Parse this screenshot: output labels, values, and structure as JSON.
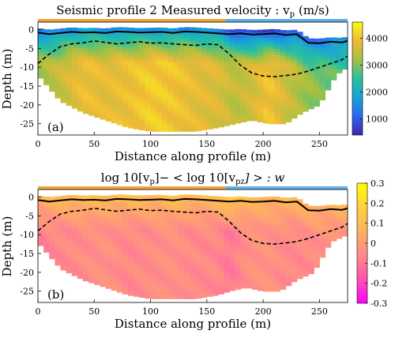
{
  "chart_data": [
    {
      "type": "heatmap",
      "panel_label": "(a)",
      "title": "Seismic profile 2 Measured velocity : v",
      "title_sub": "p",
      "title_unit": "(m/s)",
      "xlabel": "Distance along profile (m)",
      "ylabel": "Depth (m)",
      "xlim": [
        0,
        275
      ],
      "ylim": [
        -28,
        2
      ],
      "xticks": [
        0,
        50,
        100,
        150,
        200,
        250
      ],
      "yticks": [
        0,
        -5,
        -10,
        -15,
        -20,
        -25
      ],
      "colorbar": {
        "range": [
          400,
          4600
        ],
        "ticks": [
          1000,
          2000,
          3000,
          4000
        ],
        "colors": [
          "#3e26a8",
          "#2b66f3",
          "#1aa2d8",
          "#28c09e",
          "#a8c041",
          "#f0ba37",
          "#f9fb15"
        ]
      },
      "top_bar": [
        {
          "from": 0,
          "to": 167,
          "color": "#f0a23a"
        },
        {
          "from": 167,
          "to": 275,
          "color": "#5fb0ea"
        }
      ],
      "solid_line": {
        "x": [
          0,
          10,
          20,
          30,
          40,
          50,
          60,
          70,
          80,
          90,
          100,
          110,
          120,
          130,
          140,
          150,
          160,
          170,
          180,
          190,
          200,
          210,
          220,
          230,
          240,
          250,
          260,
          270,
          275
        ],
        "y": [
          -0.8,
          -1.2,
          -0.9,
          -0.6,
          -0.8,
          -0.7,
          -0.9,
          -0.5,
          -0.6,
          -0.8,
          -0.7,
          -0.6,
          -0.9,
          -0.5,
          -0.6,
          -0.8,
          -1.0,
          -1.2,
          -1.0,
          -1.3,
          -1.2,
          -1.0,
          -1.4,
          -1.2,
          -3.5,
          -3.6,
          -3.2,
          -3.4,
          -3.0
        ]
      },
      "dashed_line": {
        "x": [
          0,
          10,
          20,
          30,
          40,
          50,
          60,
          70,
          80,
          90,
          100,
          110,
          120,
          130,
          140,
          150,
          160,
          170,
          180,
          190,
          200,
          210,
          220,
          230,
          240,
          250,
          260,
          270,
          275
        ],
        "y": [
          -9.0,
          -6.5,
          -4.5,
          -3.8,
          -3.5,
          -3.0,
          -3.4,
          -3.8,
          -3.5,
          -3.2,
          -3.6,
          -3.5,
          -3.8,
          -4.0,
          -4.2,
          -3.8,
          -4.0,
          -6.5,
          -9.5,
          -11.5,
          -12.3,
          -12.5,
          -12.2,
          -11.8,
          -11.0,
          -10.0,
          -9.0,
          -8.0,
          -7.0
        ]
      },
      "velocity_field": {
        "x": [
          0,
          20,
          40,
          60,
          80,
          100,
          120,
          140,
          160,
          175,
          190,
          205,
          220,
          235,
          250,
          265,
          275
        ],
        "shallow": [
          1300,
          1500,
          1700,
          1600,
          1500,
          1600,
          1500,
          1600,
          1500,
          800,
          700,
          700,
          800,
          1100,
          1300,
          1500,
          1600
        ],
        "deep": [
          3200,
          3500,
          3900,
          3800,
          3900,
          4100,
          4000,
          3800,
          3700,
          3400,
          3600,
          4000,
          3600,
          3200,
          3000,
          2800,
          2700
        ],
        "bottom": [
          -12,
          -19,
          -22,
          -24,
          -26,
          -27,
          -27,
          -27,
          -26,
          -25,
          -24,
          -25,
          -25,
          -22,
          -20,
          -12,
          -10
        ]
      }
    },
    {
      "type": "heatmap",
      "panel_label": "(b)",
      "title": "log 10[v",
      "title_sub1": "p",
      "title_mid": "]− < log 10[v",
      "title_sub2": "pz",
      "title_end": "] > : w",
      "xlabel": "Distance along profile (m)",
      "ylabel": "Depth (m)",
      "xlim": [
        0,
        275
      ],
      "ylim": [
        -28,
        2
      ],
      "xticks": [
        0,
        50,
        100,
        150,
        200,
        250
      ],
      "yticks": [
        0,
        -5,
        -10,
        -15,
        -20,
        -25
      ],
      "colorbar": {
        "range": [
          -0.3,
          0.3
        ],
        "ticks": [
          0.3,
          0.2,
          0.1,
          0,
          -0.1,
          -0.2,
          -0.3
        ],
        "colors": [
          "#ff00ff",
          "#ff52b0",
          "#ff8a8a",
          "#ffb060",
          "#ffd040",
          "#ffff00"
        ]
      },
      "top_bar": [
        {
          "from": 0,
          "to": 167,
          "color": "#f0a23a"
        },
        {
          "from": 167,
          "to": 275,
          "color": "#5fb0ea"
        }
      ],
      "solid_line": {
        "x": [
          0,
          10,
          20,
          30,
          40,
          50,
          60,
          70,
          80,
          90,
          100,
          110,
          120,
          130,
          140,
          150,
          160,
          170,
          180,
          190,
          200,
          210,
          220,
          230,
          240,
          250,
          260,
          270,
          275
        ],
        "y": [
          -0.8,
          -1.2,
          -0.9,
          -0.6,
          -0.8,
          -0.7,
          -0.9,
          -0.5,
          -0.6,
          -0.8,
          -0.7,
          -0.6,
          -0.9,
          -0.5,
          -0.6,
          -0.8,
          -1.0,
          -1.2,
          -1.0,
          -1.3,
          -1.2,
          -1.0,
          -1.4,
          -1.2,
          -3.5,
          -3.6,
          -3.2,
          -3.4,
          -3.0
        ]
      },
      "dashed_line": {
        "x": [
          0,
          10,
          20,
          30,
          40,
          50,
          60,
          70,
          80,
          90,
          100,
          110,
          120,
          130,
          140,
          150,
          160,
          170,
          180,
          190,
          200,
          210,
          220,
          230,
          240,
          250,
          260,
          270,
          275
        ],
        "y": [
          -9.0,
          -6.5,
          -4.5,
          -3.8,
          -3.5,
          -3.0,
          -3.4,
          -3.8,
          -3.5,
          -3.2,
          -3.6,
          -3.5,
          -3.8,
          -4.0,
          -4.2,
          -3.8,
          -4.0,
          -6.5,
          -9.5,
          -11.5,
          -12.3,
          -12.5,
          -12.2,
          -11.8,
          -11.0,
          -10.0,
          -9.0,
          -8.0,
          -7.0
        ]
      },
      "w_field": {
        "x": [
          0,
          20,
          40,
          60,
          80,
          100,
          120,
          140,
          160,
          170,
          185,
          200,
          215,
          230,
          245,
          260,
          275
        ],
        "shallow": [
          0.08,
          0.1,
          0.12,
          0.1,
          0.12,
          0.1,
          0.12,
          0.1,
          0.1,
          0.2,
          0.1,
          0.08,
          0.1,
          0.08,
          0.06,
          0.06,
          0.08
        ],
        "deep": [
          -0.08,
          -0.06,
          -0.05,
          -0.04,
          -0.06,
          -0.05,
          -0.04,
          -0.06,
          -0.06,
          -0.1,
          -0.04,
          -0.03,
          -0.05,
          -0.06,
          -0.05,
          -0.04,
          -0.04
        ],
        "bottom": [
          -12,
          -19,
          -22,
          -24,
          -26,
          -27,
          -27,
          -27,
          -26,
          -25,
          -24,
          -25,
          -25,
          -22,
          -20,
          -12,
          -10
        ]
      }
    }
  ]
}
